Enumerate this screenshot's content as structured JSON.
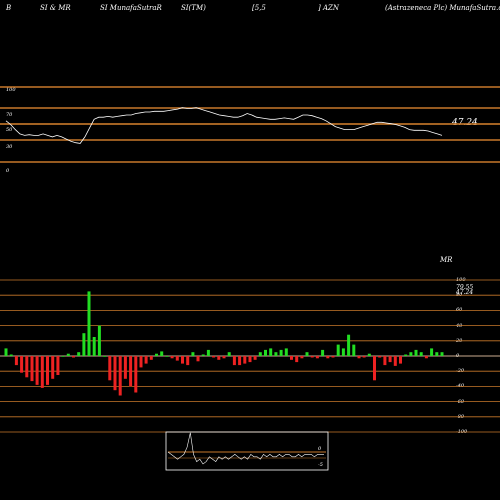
{
  "header": {
    "col1": "B",
    "col2": "SI & MR",
    "col3": "SI MunafaSutraR",
    "col4": "SI(TM)",
    "col5": "[5,5",
    "col6": "] AZN",
    "col7": "(Astrazeneca Plc) MunafaSutra.com"
  },
  "rsi_panel": {
    "value_label": "47.24",
    "yticks": [
      "100",
      "70",
      "50",
      "30",
      "0"
    ],
    "levels": [
      100,
      70,
      50,
      30,
      0
    ],
    "line_color": "#ffffff",
    "band_color": "#c8782a"
  },
  "mr_panel": {
    "title": "MR",
    "value_label_1": "79.55",
    "value_label_2": "47.24",
    "yticks": [
      "100",
      "80",
      "60",
      "40",
      "20",
      "0",
      "-20",
      "-40",
      "-60",
      "-80",
      "-100"
    ],
    "pos_color": "#22dd22",
    "neg_color": "#ee2222"
  },
  "mini_chart": {
    "tick_0": "0",
    "tick_neg": "-5"
  },
  "chart_data": [
    {
      "type": "line",
      "title": "RSI",
      "ylim": [
        0,
        100
      ],
      "series": [
        {
          "values": [
            70,
            65,
            58,
            52,
            50,
            51,
            50,
            50,
            52,
            50,
            48,
            50,
            48,
            45,
            42,
            40,
            39,
            48,
            60,
            72,
            75,
            75,
            76,
            75,
            76,
            77,
            78,
            78,
            80,
            81,
            82,
            82,
            83,
            83,
            83,
            84,
            85,
            86,
            88,
            87,
            87,
            88,
            86,
            84,
            82,
            80,
            78,
            77,
            76,
            75,
            75,
            77,
            80,
            78,
            75,
            74,
            73,
            72,
            72,
            73,
            74,
            73,
            72,
            75,
            78,
            78,
            77,
            75,
            73,
            70,
            66,
            62,
            60,
            58,
            58,
            58,
            60,
            62,
            64,
            66,
            68,
            68,
            67,
            66,
            65,
            63,
            61,
            58,
            57,
            57,
            57,
            56,
            54,
            52,
            50
          ]
        }
      ]
    },
    {
      "type": "bar",
      "title": "MR",
      "ylim": [
        -100,
        100
      ],
      "values": [
        10,
        2,
        -12,
        -22,
        -28,
        -33,
        -38,
        -42,
        -38,
        -30,
        -25,
        0,
        3,
        -2,
        5,
        30,
        85,
        25,
        40,
        0,
        -32,
        -45,
        -52,
        -30,
        -40,
        -48,
        -15,
        -10,
        -5,
        3,
        6,
        0,
        -3,
        -6,
        -10,
        -12,
        5,
        -7,
        2,
        8,
        -2,
        -5,
        -3,
        5,
        -12,
        -12,
        -10,
        -8,
        -5,
        5,
        8,
        10,
        5,
        8,
        10,
        -5,
        -8,
        -3,
        5,
        -2,
        -3,
        8,
        -3,
        -2,
        15,
        10,
        28,
        15,
        -3,
        -2,
        3,
        -32,
        -2,
        -12,
        -8,
        -13,
        -10,
        2,
        5,
        8,
        5,
        -3,
        10,
        5,
        5
      ]
    },
    {
      "type": "line",
      "title": "mini",
      "series": [
        {
          "values": [
            0,
            -1,
            -2,
            -3,
            -2,
            -1,
            2,
            8,
            -1,
            -4,
            -3,
            -5,
            -4,
            -2,
            -3,
            -4,
            -2,
            -3,
            -2,
            -3,
            -2,
            -1,
            -2,
            -3,
            -2,
            -3,
            -1,
            -2,
            -2,
            -3,
            -1,
            -2,
            -1,
            -2,
            -2,
            -1,
            -2,
            -1,
            -1,
            -2,
            -2,
            -1,
            -2,
            -1,
            -1,
            -1,
            -2,
            -1,
            -1,
            -1
          ]
        }
      ],
      "ylim": [
        -8,
        10
      ]
    }
  ]
}
